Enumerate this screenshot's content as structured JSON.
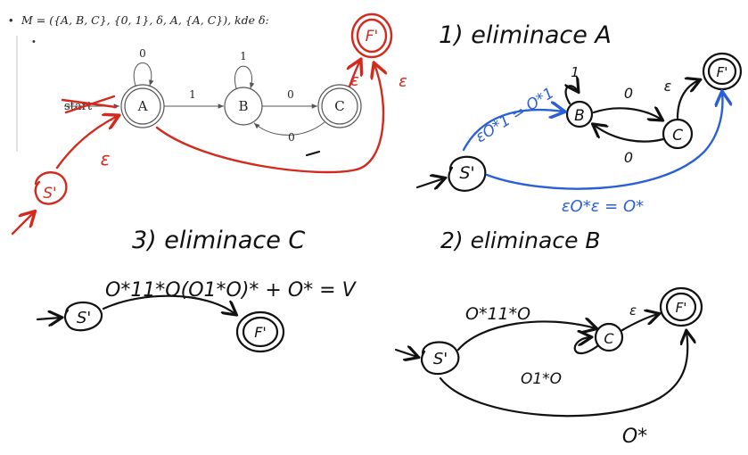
{
  "header": {
    "bullet": "•",
    "definition": "M = ({A, B, C}, {0, 1}, δ, A, {A, C}), kde δ:",
    "sub_bullet": "•"
  },
  "top_automaton": {
    "start_label": "start",
    "states": [
      "A",
      "B",
      "C"
    ],
    "edge_labels": {
      "a_loop": "0",
      "b_loop": "1",
      "a_to_b": "1",
      "b_to_c": "0",
      "c_to_b": "0"
    },
    "red_states": {
      "new_start": "S'",
      "new_final": "F'"
    },
    "red_labels": {
      "s_to_a": "ε",
      "a_to_f": "ε",
      "c_to_f": "ε"
    }
  },
  "step1": {
    "title": "1)  eliminace A",
    "states": {
      "start": "S'",
      "b": "B",
      "c": "C",
      "final": "F'"
    },
    "labels": {
      "b_loop": "1",
      "b_to_c": "0",
      "c_to_b": "0",
      "c_to_f": "ε",
      "s_to_b": "εO*1 = O*1",
      "s_to_f": "εO*ε = O*"
    },
    "colors": {
      "new_edges": "#2a5fd6"
    }
  },
  "step2": {
    "title": "2)  eliminace B",
    "states": {
      "start": "S'",
      "c": "C",
      "final": "F'"
    },
    "labels": {
      "s_to_c": "O*11*O",
      "c_loop": "O1*O",
      "c_to_f": "ε",
      "s_to_f": "O*"
    }
  },
  "step3": {
    "title": "3)  eliminace C",
    "states": {
      "start": "S'",
      "final": "F'"
    },
    "labels": {
      "s_to_f": "O*11*O(O1*O)* + O* = V"
    }
  },
  "colors": {
    "ink": "#111111",
    "red": "#d42a1e",
    "blue": "#2a5fd6"
  }
}
